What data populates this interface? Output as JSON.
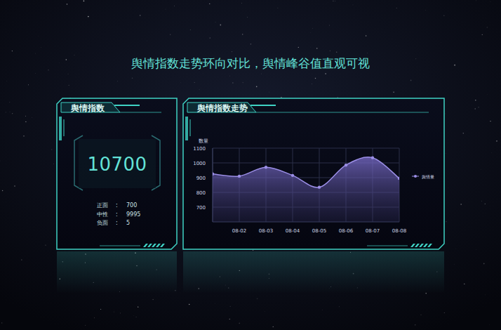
{
  "title": "舆情指数走势环向对比，舆情峰谷值直观可视",
  "index_panel": {
    "heading": "舆情指数",
    "total": 10700,
    "separator": ":",
    "rows": [
      {
        "label": "正面",
        "value": 700
      },
      {
        "label": "中性",
        "value": 9995
      },
      {
        "label": "负面",
        "value": 5
      }
    ]
  },
  "chart_data": {
    "type": "line",
    "title": "舆情指数走势",
    "y_label": "数量",
    "categories": [
      null,
      "08-02",
      "08-03",
      "08-04",
      "08-05",
      "08-06",
      "08-07",
      "08-08"
    ],
    "series": [
      {
        "name": "舆情量",
        "color": "#9b8ee6",
        "values": [
          925,
          910,
          970,
          915,
          835,
          985,
          1035,
          895
        ]
      }
    ],
    "ylim": [
      600,
      1100
    ],
    "yticks": [
      700,
      800,
      900,
      1000,
      1100
    ],
    "grid": true,
    "legend": "right",
    "marker": "circle"
  }
}
